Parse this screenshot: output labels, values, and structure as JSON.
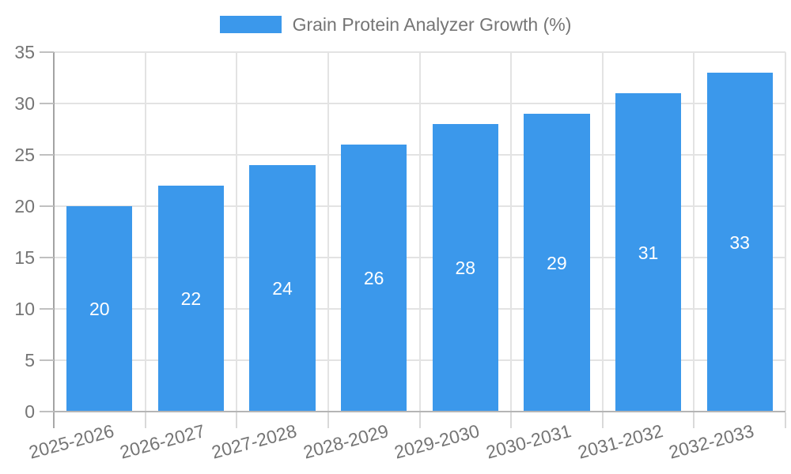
{
  "legend": {
    "label": "Grain Protein Analyzer Growth (%)"
  },
  "colors": {
    "bar": "#3B98EB",
    "axis_text": "#757575",
    "value_label_text": "#FFFFFF",
    "grid_line": "#E3E3E3",
    "x_baseline": "#B5B5B5",
    "y_axis_line": "#A3A3A3",
    "y_tick": "#C0C0C0",
    "x_tick_minor": "#D9D9D9",
    "x_tick_axis": "#A8A8A8",
    "background": "#FFFFFF"
  },
  "chart_data": {
    "type": "bar",
    "title": "",
    "categories": [
      "2025-2026",
      "2026-2027",
      "2027-2028",
      "2028-2029",
      "2029-2030",
      "2030-2031",
      "2031-2032",
      "2032-2033"
    ],
    "series": [
      {
        "name": "Grain Protein Analyzer Growth (%)",
        "values": [
          20,
          22,
          24,
          26,
          28,
          29,
          31,
          33
        ]
      }
    ],
    "xlabel": "",
    "ylabel": "",
    "ylim": [
      0,
      35
    ],
    "yticks": [
      0,
      5,
      10,
      15,
      20,
      25,
      30,
      35
    ],
    "grid": true,
    "legend_position": "top-center",
    "value_label_position": "inside-center",
    "x_tick_label_rotation_deg": -15
  }
}
